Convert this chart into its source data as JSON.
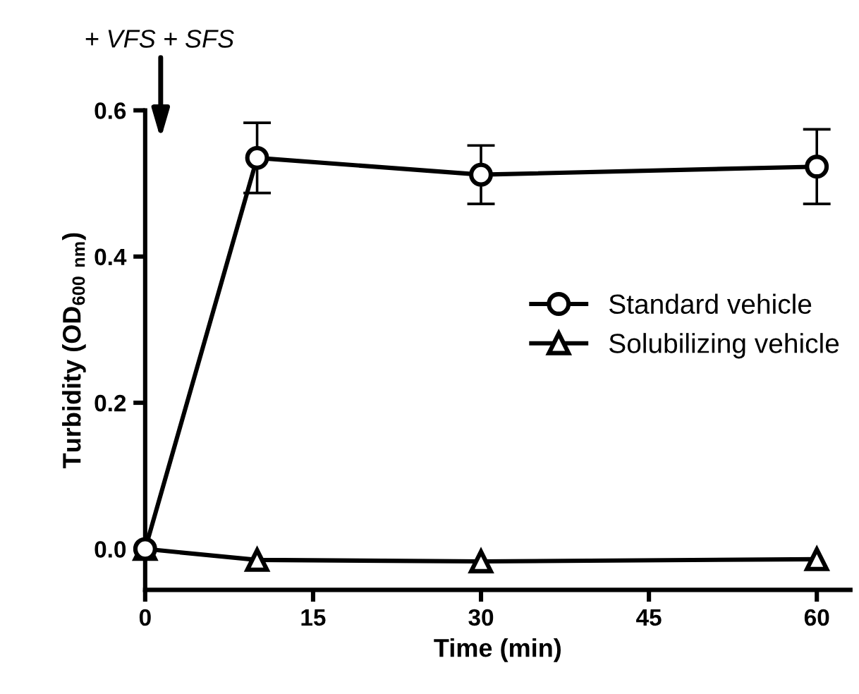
{
  "chart_data": {
    "type": "line",
    "xlabel": "Time (min)",
    "ylabel": "Turbidity (OD$_{600 nm}$)",
    "x": [
      0,
      10,
      30,
      60
    ],
    "series": [
      {
        "name": "Standard vehicle",
        "color": "#000000",
        "values": [
          0,
          0.535,
          0.512,
          0.523
        ],
        "errors": [
          null,
          0.048,
          0.04,
          0.051
        ],
        "marker": "circle"
      },
      {
        "name": "Solubilizing vehicle",
        "color": "#000000",
        "values": [
          0,
          -0.015,
          -0.017,
          -0.014
        ],
        "marker": "triangle"
      }
    ],
    "xlim": [
      0,
      63
    ],
    "xticks": [
      0,
      15,
      30,
      45,
      60
    ],
    "ylim": [
      -0.056,
      0.6
    ],
    "yticks": [
      {
        "value": 0,
        "label": "0.0"
      },
      {
        "value": 0.2,
        "label": "0.2"
      },
      {
        "value": 0.4,
        "label": "0.4"
      },
      {
        "value": 0.6,
        "label": "0.6"
      }
    ],
    "annotations": [
      "+ VFS + SFS"
    ],
    "legend": "right",
    "grid": false,
    "line_style": "solid"
  }
}
